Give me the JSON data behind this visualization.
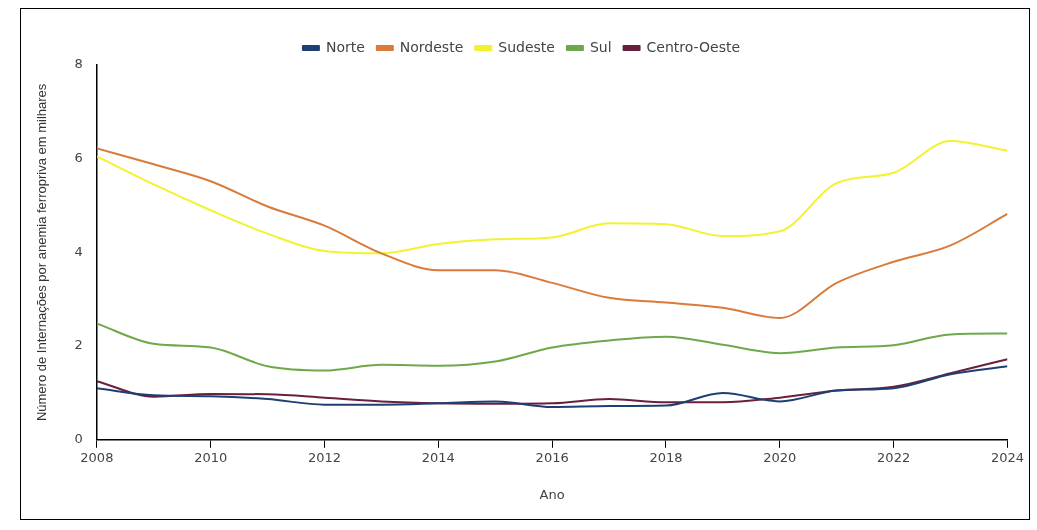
{
  "chart_data": {
    "type": "line",
    "xlabel": "Ano",
    "ylabel": "Número de Internações por anemia ferropriva em milhares",
    "x": [
      2008,
      2009,
      2010,
      2011,
      2012,
      2013,
      2014,
      2015,
      2016,
      2017,
      2018,
      2019,
      2020,
      2021,
      2022,
      2023,
      2024
    ],
    "xlim": [
      2008,
      2024
    ],
    "xticks": [
      2008,
      2010,
      2012,
      2014,
      2016,
      2018,
      2020,
      2022,
      2024
    ],
    "ylim": [
      0,
      8
    ],
    "yticks": [
      0,
      2,
      4,
      6,
      8
    ],
    "grid": false,
    "legend": "top",
    "marker": "none",
    "line_style": "solid",
    "series": [
      {
        "name": "Norte",
        "color": "#1f3f73",
        "values": [
          1.1,
          0.95,
          0.93,
          0.87,
          0.75,
          0.75,
          0.78,
          0.82,
          0.7,
          0.72,
          0.73,
          1.0,
          0.82,
          1.05,
          1.1,
          1.4,
          1.57
        ]
      },
      {
        "name": "Nordeste",
        "color": "#d97b3a",
        "values": [
          6.22,
          5.88,
          5.52,
          4.98,
          4.57,
          3.98,
          3.62,
          3.62,
          3.35,
          3.03,
          2.93,
          2.82,
          2.6,
          3.35,
          3.8,
          4.15,
          4.82
        ]
      },
      {
        "name": "Sudeste",
        "color": "#f2f230",
        "values": [
          6.05,
          5.45,
          4.9,
          4.4,
          4.03,
          3.98,
          4.18,
          4.28,
          4.32,
          4.62,
          4.6,
          4.35,
          4.45,
          5.48,
          5.7,
          6.38,
          6.17
        ]
      },
      {
        "name": "Sul",
        "color": "#6fa84a",
        "values": [
          2.48,
          2.05,
          1.97,
          1.57,
          1.48,
          1.6,
          1.58,
          1.67,
          1.97,
          2.12,
          2.2,
          2.03,
          1.85,
          1.97,
          2.02,
          2.25,
          2.27
        ]
      },
      {
        "name": "Centro-Oeste",
        "color": "#6b1f3f",
        "values": [
          1.25,
          0.92,
          0.98,
          0.97,
          0.9,
          0.82,
          0.78,
          0.77,
          0.78,
          0.87,
          0.8,
          0.8,
          0.9,
          1.05,
          1.13,
          1.42,
          1.72
        ]
      }
    ]
  }
}
